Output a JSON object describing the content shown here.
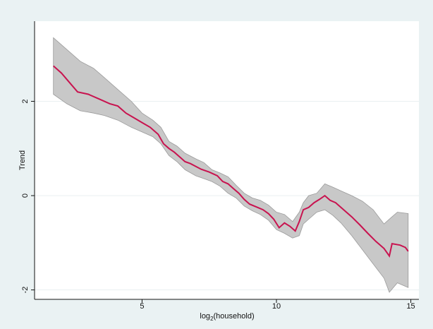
{
  "chart_data": {
    "type": "line",
    "title": "",
    "xlabel": "log",
    "xlabel_sub": "2",
    "xlabel_rest": "(household)",
    "ylabel": "Trend",
    "xlim": [
      1,
      15.3
    ],
    "ylim": [
      -2.2,
      3.7
    ],
    "x_ticks": [
      {
        "value": 5,
        "label": "5"
      },
      {
        "value": 10,
        "label": "10"
      },
      {
        "value": 15,
        "label": "15"
      }
    ],
    "y_ticks": [
      {
        "value": -2,
        "label": "-2"
      },
      {
        "value": 0,
        "label": "0"
      },
      {
        "value": 2,
        "label": "2"
      }
    ],
    "grid": "horizontal",
    "colors": {
      "line": "#c8134f",
      "band": "#c8c8c8",
      "band_edge": "#9a9a9a",
      "plot_bg": "#ffffff",
      "outer_bg": "#eaf2f3",
      "grid": "#e9eff1"
    },
    "series": [
      {
        "points": [
          [
            1.7,
            2.75
          ],
          [
            2.0,
            2.6
          ],
          [
            2.3,
            2.4
          ],
          [
            2.6,
            2.2
          ],
          [
            3.0,
            2.15
          ],
          [
            3.4,
            2.05
          ],
          [
            3.8,
            1.95
          ],
          [
            4.1,
            1.9
          ],
          [
            4.4,
            1.75
          ],
          [
            4.7,
            1.65
          ],
          [
            5.0,
            1.55
          ],
          [
            5.3,
            1.45
          ],
          [
            5.6,
            1.3
          ],
          [
            5.8,
            1.1
          ],
          [
            6.0,
            1.0
          ],
          [
            6.2,
            0.92
          ],
          [
            6.4,
            0.82
          ],
          [
            6.6,
            0.72
          ],
          [
            6.8,
            0.68
          ],
          [
            7.0,
            0.62
          ],
          [
            7.2,
            0.56
          ],
          [
            7.5,
            0.5
          ],
          [
            7.8,
            0.42
          ],
          [
            8.0,
            0.3
          ],
          [
            8.2,
            0.25
          ],
          [
            8.4,
            0.15
          ],
          [
            8.6,
            0.05
          ],
          [
            8.8,
            -0.08
          ],
          [
            9.0,
            -0.18
          ],
          [
            9.3,
            -0.25
          ],
          [
            9.5,
            -0.3
          ],
          [
            9.7,
            -0.38
          ],
          [
            9.9,
            -0.5
          ],
          [
            10.1,
            -0.68
          ],
          [
            10.3,
            -0.58
          ],
          [
            10.5,
            -0.65
          ],
          [
            10.7,
            -0.75
          ],
          [
            10.85,
            -0.55
          ],
          [
            11.0,
            -0.3
          ],
          [
            11.2,
            -0.25
          ],
          [
            11.4,
            -0.15
          ],
          [
            11.6,
            -0.08
          ],
          [
            11.8,
            0.0
          ],
          [
            12.0,
            -0.1
          ],
          [
            12.2,
            -0.15
          ],
          [
            12.5,
            -0.3
          ],
          [
            12.8,
            -0.45
          ],
          [
            13.1,
            -0.62
          ],
          [
            13.4,
            -0.8
          ],
          [
            13.7,
            -0.97
          ],
          [
            14.0,
            -1.12
          ],
          [
            14.2,
            -1.28
          ],
          [
            14.3,
            -1.02
          ],
          [
            14.6,
            -1.05
          ],
          [
            14.8,
            -1.1
          ],
          [
            14.9,
            -1.18
          ]
        ],
        "band_upper": [
          [
            1.7,
            3.35
          ],
          [
            2.2,
            3.1
          ],
          [
            2.7,
            2.85
          ],
          [
            3.2,
            2.7
          ],
          [
            3.6,
            2.5
          ],
          [
            4.1,
            2.25
          ],
          [
            4.6,
            2.0
          ],
          [
            5.0,
            1.75
          ],
          [
            5.4,
            1.6
          ],
          [
            5.7,
            1.45
          ],
          [
            6.0,
            1.15
          ],
          [
            6.3,
            1.05
          ],
          [
            6.6,
            0.9
          ],
          [
            7.0,
            0.78
          ],
          [
            7.3,
            0.7
          ],
          [
            7.6,
            0.55
          ],
          [
            7.9,
            0.48
          ],
          [
            8.2,
            0.4
          ],
          [
            8.5,
            0.22
          ],
          [
            8.8,
            0.05
          ],
          [
            9.1,
            -0.05
          ],
          [
            9.4,
            -0.1
          ],
          [
            9.7,
            -0.2
          ],
          [
            10.0,
            -0.35
          ],
          [
            10.3,
            -0.4
          ],
          [
            10.6,
            -0.55
          ],
          [
            10.85,
            -0.35
          ],
          [
            11.0,
            -0.15
          ],
          [
            11.2,
            0.0
          ],
          [
            11.5,
            0.05
          ],
          [
            11.8,
            0.25
          ],
          [
            12.1,
            0.18
          ],
          [
            12.4,
            0.1
          ],
          [
            12.8,
            0.0
          ],
          [
            13.2,
            -0.12
          ],
          [
            13.6,
            -0.3
          ],
          [
            14.0,
            -0.6
          ],
          [
            14.3,
            -0.45
          ],
          [
            14.5,
            -0.35
          ],
          [
            14.9,
            -0.38
          ]
        ],
        "band_lower": [
          [
            1.7,
            2.15
          ],
          [
            2.2,
            1.95
          ],
          [
            2.7,
            1.8
          ],
          [
            3.2,
            1.75
          ],
          [
            3.6,
            1.7
          ],
          [
            4.1,
            1.6
          ],
          [
            4.6,
            1.45
          ],
          [
            5.0,
            1.35
          ],
          [
            5.4,
            1.25
          ],
          [
            5.7,
            1.1
          ],
          [
            6.0,
            0.85
          ],
          [
            6.3,
            0.72
          ],
          [
            6.6,
            0.55
          ],
          [
            7.0,
            0.42
          ],
          [
            7.3,
            0.36
          ],
          [
            7.6,
            0.3
          ],
          [
            7.9,
            0.2
          ],
          [
            8.2,
            0.05
          ],
          [
            8.5,
            -0.05
          ],
          [
            8.8,
            -0.22
          ],
          [
            9.1,
            -0.32
          ],
          [
            9.4,
            -0.4
          ],
          [
            9.7,
            -0.52
          ],
          [
            10.0,
            -0.72
          ],
          [
            10.3,
            -0.8
          ],
          [
            10.6,
            -0.9
          ],
          [
            10.85,
            -0.85
          ],
          [
            11.0,
            -0.6
          ],
          [
            11.2,
            -0.5
          ],
          [
            11.5,
            -0.35
          ],
          [
            11.8,
            -0.3
          ],
          [
            12.1,
            -0.42
          ],
          [
            12.4,
            -0.58
          ],
          [
            12.8,
            -0.85
          ],
          [
            13.2,
            -1.15
          ],
          [
            13.6,
            -1.45
          ],
          [
            14.0,
            -1.75
          ],
          [
            14.2,
            -2.05
          ],
          [
            14.5,
            -1.85
          ],
          [
            14.9,
            -1.95
          ]
        ]
      }
    ]
  }
}
